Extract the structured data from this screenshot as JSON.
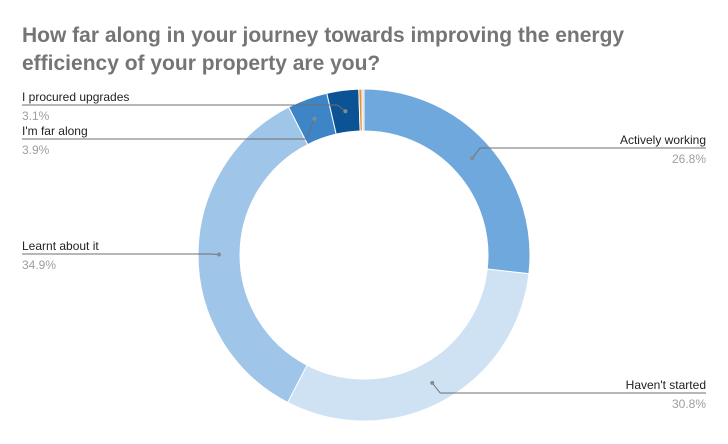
{
  "chart_data": {
    "type": "pie",
    "title": "How far along in your journey towards improving the energy efficiency of your property are you?",
    "donut": true,
    "legend": "none",
    "slices": [
      {
        "label": "Actively working",
        "value": 26.8,
        "value_label": "26.8%",
        "color": "#6fa8dc"
      },
      {
        "label": "Haven't started",
        "value": 30.8,
        "value_label": "30.8%",
        "color": "#cfe2f3"
      },
      {
        "label": "Learnt about it",
        "value": 34.9,
        "value_label": "34.9%",
        "color": "#9fc5e8"
      },
      {
        "label": "I'm far along",
        "value": 3.9,
        "value_label": "3.9%",
        "color": "#3d85c6"
      },
      {
        "label": "I procured upgrades",
        "value": 3.1,
        "value_label": "3.1%",
        "color": "#0b5394"
      },
      {
        "label": "",
        "value": 0.3,
        "value_label": "",
        "color": "#e69138"
      },
      {
        "label": "",
        "value": 0.2,
        "value_label": "",
        "color": "#cccccc"
      }
    ]
  }
}
